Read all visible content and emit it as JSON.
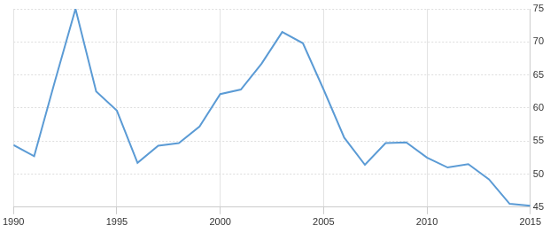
{
  "chart_data": {
    "type": "line",
    "x": [
      1990,
      1991,
      1992,
      1993,
      1994,
      1995,
      1996,
      1997,
      1998,
      1999,
      2000,
      2001,
      2002,
      2003,
      2004,
      2005,
      2006,
      2007,
      2008,
      2009,
      2010,
      2011,
      2012,
      2013,
      2014,
      2015
    ],
    "values": [
      54.4,
      52.7,
      64.0,
      75.0,
      62.5,
      59.6,
      51.7,
      54.3,
      54.7,
      57.2,
      62.1,
      62.8,
      66.7,
      71.5,
      69.8,
      62.8,
      55.5,
      51.4,
      54.7,
      54.8,
      52.5,
      51.0,
      51.5,
      49.2,
      45.5,
      45.2
    ],
    "color": "#5b9bd5",
    "xlim": [
      1990,
      2015
    ],
    "xticks": [
      1990,
      1995,
      2000,
      2005,
      2010,
      2015
    ],
    "ylim": [
      45,
      75
    ],
    "yticks": [
      45,
      50,
      55,
      60,
      65,
      70,
      75
    ],
    "grid": true
  }
}
